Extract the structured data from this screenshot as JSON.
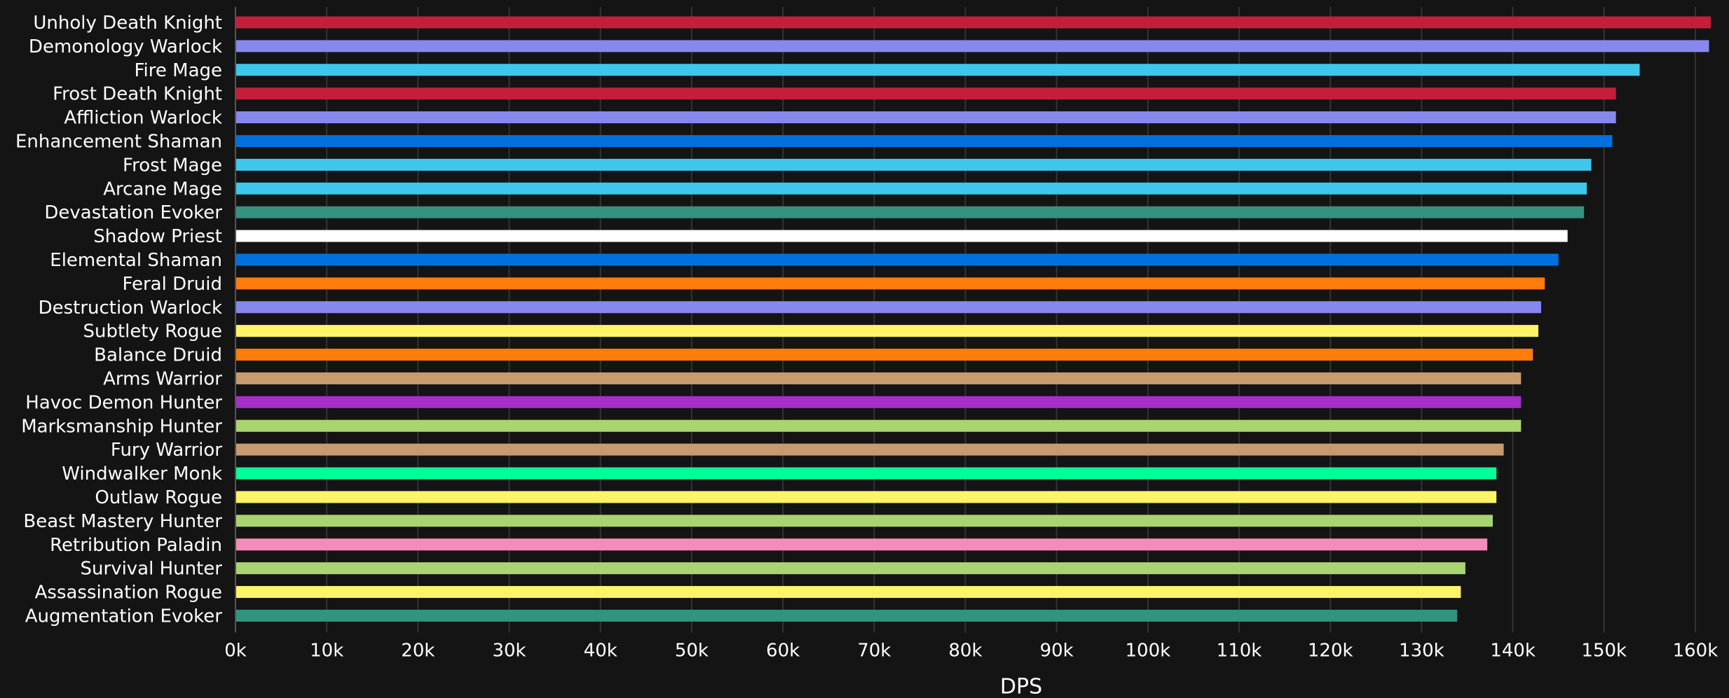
{
  "chart_data": {
    "type": "bar",
    "orientation": "horizontal",
    "xlabel": "DPS",
    "xlim": [
      0,
      163000
    ],
    "xticks": [
      0,
      10000,
      20000,
      30000,
      40000,
      50000,
      60000,
      70000,
      80000,
      90000,
      100000,
      110000,
      120000,
      130000,
      140000,
      150000,
      160000
    ],
    "xtick_labels": [
      "0k",
      "10k",
      "20k",
      "30k",
      "40k",
      "50k",
      "60k",
      "70k",
      "80k",
      "90k",
      "100k",
      "110k",
      "120k",
      "130k",
      "140k",
      "150k",
      "160k"
    ],
    "grid": "vertical",
    "legend": "none",
    "categories": [
      "Unholy Death Knight",
      "Demonology Warlock",
      "Fire Mage",
      "Frost Death Knight",
      "Affliction Warlock",
      "Enhancement Shaman",
      "Frost Mage",
      "Arcane Mage",
      "Devastation Evoker",
      "Shadow Priest",
      "Elemental Shaman",
      "Feral Druid",
      "Destruction Warlock",
      "Subtlety Rogue",
      "Balance Druid",
      "Arms Warrior",
      "Havoc Demon Hunter",
      "Marksmanship Hunter",
      "Fury Warrior",
      "Windwalker Monk",
      "Outlaw Rogue",
      "Beast Mastery Hunter",
      "Retribution Paladin",
      "Survival Hunter",
      "Assassination Rogue",
      "Augmentation Evoker"
    ],
    "values": [
      161700,
      161500,
      153900,
      151300,
      151300,
      150900,
      148600,
      148100,
      147800,
      146000,
      145000,
      143500,
      143100,
      142800,
      142200,
      140900,
      140900,
      140900,
      139000,
      138200,
      138200,
      137800,
      137200,
      134800,
      134300,
      133900
    ],
    "colors": [
      "#C41E3A",
      "#8788EE",
      "#3FC7EB",
      "#C41E3A",
      "#8788EE",
      "#0070DD",
      "#3FC7EB",
      "#3FC7EB",
      "#33937F",
      "#FFFFFF",
      "#0070DD",
      "#FF7C0A",
      "#8788EE",
      "#FFF468",
      "#FF7C0A",
      "#C69B6D",
      "#A330C9",
      "#AAD372",
      "#C69B6D",
      "#00FF98",
      "#FFF468",
      "#AAD372",
      "#F48CBA",
      "#AAD372",
      "#FFF468",
      "#33937F"
    ]
  }
}
